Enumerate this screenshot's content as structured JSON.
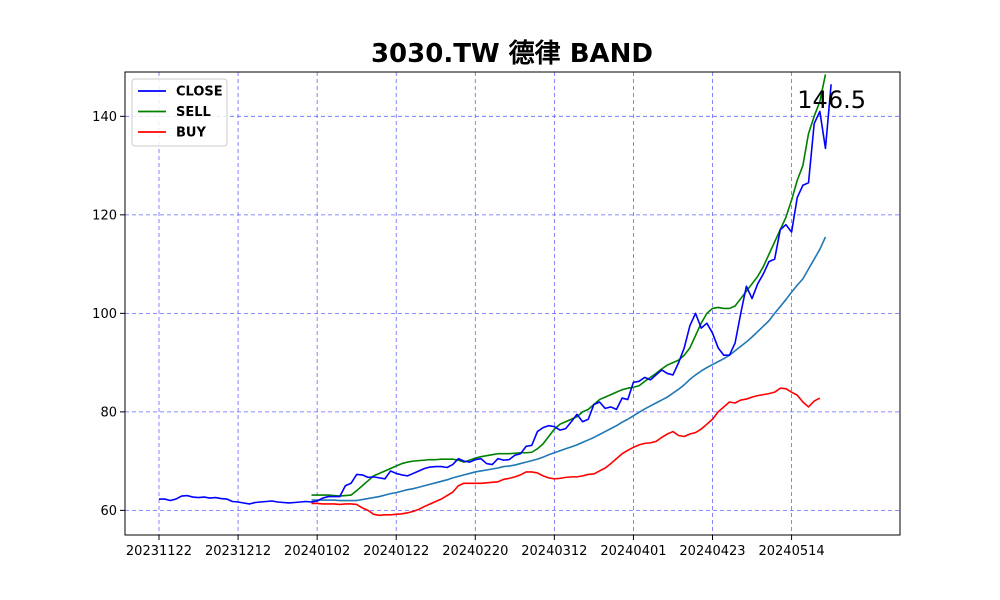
{
  "chart_data": {
    "type": "line",
    "title": "3030.TW 德律 BAND",
    "xlabel": "",
    "ylabel": "",
    "ylim": [
      55,
      149
    ],
    "grid": true,
    "legend_placement": "top-left",
    "x_ticks": [
      "20231122",
      "20231212",
      "20240102",
      "20240122",
      "20240220",
      "20240312",
      "20240401",
      "20240423",
      "20240514"
    ],
    "y_ticks": [
      60,
      80,
      100,
      120,
      140
    ],
    "annotation": "146.5",
    "series": [
      {
        "name": "CLOSE",
        "color": "#0000ff",
        "start_index": 0,
        "values": [
          62.3,
          62.3,
          62,
          62.3,
          62.9,
          63,
          62.7,
          62.6,
          62.7,
          62.5,
          62.6,
          62.4,
          62.3,
          61.8,
          61.7,
          61.5,
          61.3,
          61.6,
          61.7,
          61.8,
          61.9,
          61.7,
          61.6,
          61.5,
          61.6,
          61.7,
          61.8,
          61.7,
          61.9,
          62.5,
          62.8,
          62.8,
          62.8,
          65,
          65.5,
          67.3,
          67.2,
          66.7,
          66.8,
          66.6,
          66.4,
          68,
          67.5,
          67.2,
          67,
          67.5,
          68,
          68.5,
          68.8,
          68.9,
          68.9,
          68.7,
          69.3,
          70.5,
          70,
          69.8,
          70.3,
          70.5,
          69.5,
          69.3,
          70.5,
          70.2,
          70.3,
          71.2,
          71.5,
          73,
          73.2,
          76,
          76.8,
          77.2,
          77,
          76.3,
          76.6,
          78,
          79.5,
          78,
          78.5,
          81.5,
          82,
          80.7,
          81,
          80.5,
          82.8,
          82.5,
          86,
          86.2,
          87,
          86.5,
          87.5,
          88.5,
          87.8,
          87.5,
          90,
          93,
          97.5,
          100,
          97,
          98,
          96,
          93,
          91.5,
          91.5,
          94,
          100,
          105.5,
          103,
          106,
          108,
          110.5,
          111,
          117,
          118,
          116.5,
          123.5,
          126,
          126.5,
          138.5,
          141,
          133.5,
          146.5
        ]
      },
      {
        "name": "SELL",
        "color": "#008000",
        "start_index": 27,
        "values": [
          63.1,
          63.1,
          63.1,
          63.1,
          63,
          62.9,
          63,
          63.1,
          64,
          65,
          66,
          67,
          67.5,
          68,
          68.5,
          69,
          69.5,
          69.8,
          70,
          70.1,
          70.2,
          70.3,
          70.3,
          70.4,
          70.4,
          70.4,
          70.2,
          69.8,
          70.2,
          70.6,
          70.9,
          71.1,
          71.3,
          71.5,
          71.5,
          71.5,
          71.6,
          71.7,
          71.7,
          71.8,
          72.5,
          73.5,
          75,
          76.5,
          77.5,
          78,
          78.5,
          79,
          80,
          80.5,
          81.5,
          82.5,
          83,
          83.5,
          84,
          84.5,
          84.8,
          85,
          85.3,
          86.2,
          87,
          87.8,
          88.7,
          89.5,
          90,
          90.5,
          91.5,
          93,
          95.5,
          98,
          100,
          101,
          101.2,
          101,
          101,
          101.5,
          103,
          104.5,
          106,
          107.5,
          109.5,
          112,
          114.5,
          117,
          119.5,
          123,
          127,
          130,
          136.5,
          140,
          143,
          148.5
        ]
      },
      {
        "name": "BUY",
        "color": "#ff0000",
        "start_index": 27,
        "values": [
          61.4,
          61.4,
          61.3,
          61.3,
          61.3,
          61.2,
          61.3,
          61.3,
          61.2,
          60.5,
          60,
          59.2,
          59,
          59.1,
          59.1,
          59.2,
          59.3,
          59.5,
          59.8,
          60.2,
          60.8,
          61.3,
          61.8,
          62.3,
          63,
          63.7,
          65,
          65.5,
          65.5,
          65.5,
          65.5,
          65.6,
          65.7,
          65.8,
          66.3,
          66.5,
          66.8,
          67.2,
          67.8,
          67.8,
          67.6,
          67,
          66.6,
          66.4,
          66.5,
          66.7,
          66.8,
          66.8,
          67,
          67.3,
          67.4,
          68,
          68.6,
          69.5,
          70.5,
          71.5,
          72.2,
          72.8,
          73.3,
          73.6,
          73.7,
          74,
          74.8,
          75.5,
          76,
          75.2,
          75,
          75.5,
          75.8,
          76.5,
          77.5,
          78.5,
          80,
          81,
          82,
          81.8,
          82.4,
          82.6,
          83,
          83.3,
          83.5,
          83.7,
          84,
          84.8,
          84.7,
          84,
          83.4,
          82,
          81,
          82.2,
          82.8
        ]
      },
      {
        "name": "",
        "color": "#1f77b4",
        "start_index": 27,
        "values": [
          62.1,
          62.1,
          62.1,
          62.1,
          62.1,
          62,
          62,
          62,
          62,
          62.2,
          62.4,
          62.6,
          62.8,
          63.1,
          63.4,
          63.6,
          63.9,
          64.2,
          64.4,
          64.7,
          65,
          65.3,
          65.6,
          65.9,
          66.2,
          66.6,
          66.9,
          67.2,
          67.5,
          67.8,
          68,
          68.2,
          68.4,
          68.6,
          68.9,
          69,
          69.2,
          69.5,
          69.8,
          70.1,
          70.4,
          70.8,
          71.3,
          71.7,
          72.1,
          72.5,
          72.9,
          73.3,
          73.8,
          74.3,
          74.8,
          75.4,
          76,
          76.6,
          77.2,
          77.9,
          78.5,
          79.2,
          79.9,
          80.6,
          81.2,
          81.8,
          82.4,
          83,
          83.8,
          84.6,
          85.5,
          86.6,
          87.5,
          88.3,
          89,
          89.6,
          90.2,
          90.8,
          91.5,
          92.4,
          93.3,
          94.2,
          95.2,
          96.3,
          97.4,
          98.5,
          100,
          101.4,
          102.8,
          104.3,
          105.7,
          107,
          109,
          111,
          113,
          115.5
        ]
      }
    ]
  }
}
